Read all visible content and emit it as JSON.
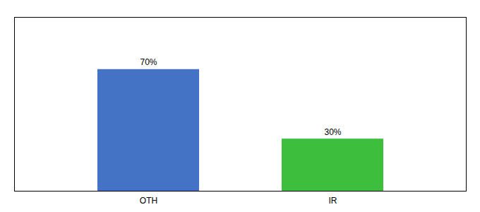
{
  "chart_data": {
    "type": "bar",
    "categories": [
      "OTH",
      "IR"
    ],
    "values": [
      70,
      30
    ],
    "value_labels": [
      "70%",
      "30%"
    ],
    "colors": [
      "#4472c4",
      "#3dbf3d"
    ],
    "ylim": [
      0,
      100
    ],
    "grid": false,
    "data_labels": true,
    "tick_labels": "x"
  }
}
